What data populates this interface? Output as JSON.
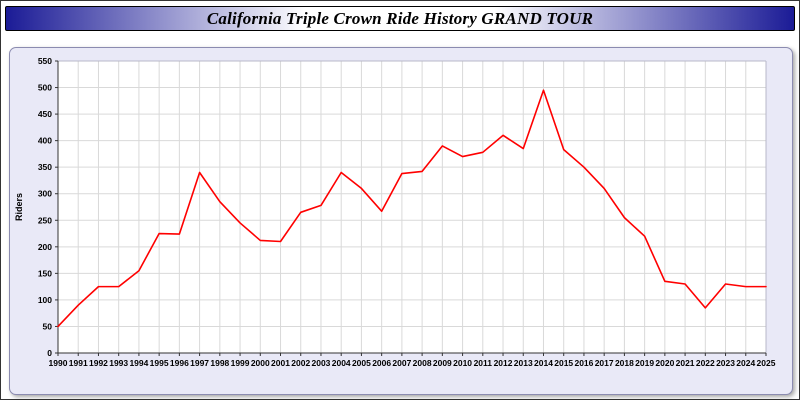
{
  "chart_data": {
    "type": "line",
    "title": "California Triple Crown Ride History GRAND TOUR",
    "x": [
      1990,
      1991,
      1992,
      1993,
      1994,
      1995,
      1996,
      1997,
      1998,
      1999,
      2000,
      2001,
      2002,
      2003,
      2004,
      2005,
      2006,
      2007,
      2008,
      2009,
      2010,
      2011,
      2012,
      2013,
      2014,
      2015,
      2016,
      2017,
      2018,
      2019,
      2020,
      2021,
      2022,
      2023,
      2024,
      2025
    ],
    "series": [
      {
        "name": "Riders",
        "color": "#ff0000",
        "values": [
          50,
          90,
          125,
          125,
          155,
          225,
          224,
          340,
          285,
          245,
          212,
          210,
          265,
          278,
          340,
          310,
          267,
          338,
          342,
          390,
          370,
          378,
          410,
          385,
          495,
          383,
          350,
          310,
          255,
          220,
          135,
          130,
          85,
          130,
          125,
          125
        ]
      }
    ],
    "xlabel": "",
    "ylabel": "Riders",
    "ylim": [
      0,
      550
    ],
    "ytick_step": 50,
    "grid": true,
    "legend_position": "none",
    "plot_bg": "#ffffff",
    "panel_bg": "#e9e9f7",
    "grid_color": "#d9d9d9",
    "axis_color": "#333333",
    "label_color": "#000000"
  }
}
